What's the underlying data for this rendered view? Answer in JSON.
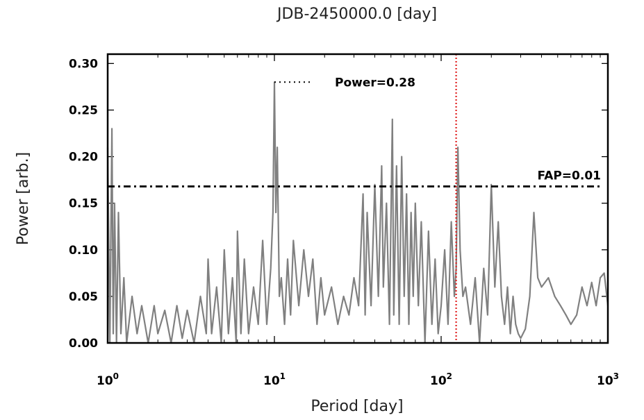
{
  "chart_data": {
    "type": "line",
    "title": "",
    "top_axis_label": "JDB-2450000.0 [day]",
    "xlabel": "Period [day]",
    "ylabel": "Power [arb.]",
    "xscale": "log",
    "xlim": [
      1,
      1000
    ],
    "ylim": [
      0,
      0.31
    ],
    "grid": false,
    "x_ticks": [
      {
        "value": 1,
        "base": "10",
        "exp": "0"
      },
      {
        "value": 10,
        "base": "10",
        "exp": "1"
      },
      {
        "value": 100,
        "base": "10",
        "exp": "2"
      },
      {
        "value": 1000,
        "base": "10",
        "exp": "3"
      }
    ],
    "y_ticks": [
      {
        "value": 0.0,
        "label": "0.00"
      },
      {
        "value": 0.05,
        "label": "0.05"
      },
      {
        "value": 0.1,
        "label": "0.10"
      },
      {
        "value": 0.15,
        "label": "0.15"
      },
      {
        "value": 0.2,
        "label": "0.20"
      },
      {
        "value": 0.25,
        "label": "0.25"
      },
      {
        "value": 0.3,
        "label": "0.30"
      }
    ],
    "series": [
      {
        "color": "#808080",
        "x": [
          1.0,
          1.03,
          1.06,
          1.08,
          1.1,
          1.13,
          1.16,
          1.2,
          1.25,
          1.3,
          1.4,
          1.5,
          1.6,
          1.75,
          1.9,
          2.0,
          2.2,
          2.4,
          2.6,
          2.8,
          3.0,
          3.3,
          3.6,
          3.9,
          4.0,
          4.2,
          4.5,
          4.8,
          5.0,
          5.3,
          5.6,
          5.9,
          6.0,
          6.3,
          6.6,
          7.0,
          7.5,
          8.0,
          8.5,
          9.0,
          9.5,
          9.8,
          10.0,
          10.2,
          10.4,
          10.7,
          11.0,
          11.5,
          12.0,
          12.5,
          13.0,
          14.0,
          15.0,
          16.0,
          17.0,
          18.0,
          19.0,
          20.0,
          22.0,
          24.0,
          26.0,
          28.0,
          30.0,
          32.0,
          34.0,
          35.0,
          36.0,
          38.0,
          40.0,
          42.0,
          44.0,
          45.0,
          47.0,
          49.0,
          51.0,
          52.0,
          54.0,
          56.0,
          58.0,
          60.0,
          62.0,
          64.0,
          66.0,
          68.0,
          70.0,
          73.0,
          76.0,
          80.0,
          84.0,
          88.0,
          92.0,
          96.0,
          100.0,
          105.0,
          110.0,
          115.0,
          120.0,
          123.0,
          126.0,
          130.0,
          135.0,
          140.0,
          150.0,
          160.0,
          170.0,
          180.0,
          190.0,
          200.0,
          210.0,
          220.0,
          230.0,
          240.0,
          250.0,
          260.0,
          270.0,
          280.0,
          290.0,
          300.0,
          320.0,
          340.0,
          360.0,
          380.0,
          400.0,
          440.0,
          480.0,
          520.0,
          560.0,
          600.0,
          650.0,
          700.0,
          750.0,
          800.0,
          850.0,
          900.0,
          950.0,
          1000.0
        ],
        "y": [
          0.21,
          0.0,
          0.23,
          0.01,
          0.15,
          0.0,
          0.14,
          0.01,
          0.07,
          0.0,
          0.05,
          0.01,
          0.04,
          0.0,
          0.04,
          0.01,
          0.035,
          0.0,
          0.04,
          0.005,
          0.035,
          0.0,
          0.05,
          0.01,
          0.09,
          0.01,
          0.06,
          0.0,
          0.1,
          0.01,
          0.07,
          0.0,
          0.12,
          0.01,
          0.09,
          0.01,
          0.06,
          0.02,
          0.11,
          0.02,
          0.08,
          0.14,
          0.28,
          0.14,
          0.21,
          0.05,
          0.07,
          0.02,
          0.09,
          0.03,
          0.11,
          0.04,
          0.1,
          0.05,
          0.09,
          0.02,
          0.07,
          0.03,
          0.06,
          0.02,
          0.05,
          0.03,
          0.07,
          0.04,
          0.16,
          0.03,
          0.14,
          0.04,
          0.17,
          0.05,
          0.19,
          0.06,
          0.15,
          0.02,
          0.24,
          0.03,
          0.19,
          0.02,
          0.2,
          0.05,
          0.16,
          0.02,
          0.14,
          0.05,
          0.15,
          0.04,
          0.13,
          0.0,
          0.12,
          0.02,
          0.09,
          0.01,
          0.04,
          0.1,
          0.02,
          0.13,
          0.05,
          0.08,
          0.21,
          0.1,
          0.05,
          0.06,
          0.02,
          0.07,
          0.0,
          0.08,
          0.03,
          0.17,
          0.06,
          0.13,
          0.05,
          0.02,
          0.06,
          0.01,
          0.05,
          0.02,
          0.01,
          0.005,
          0.015,
          0.05,
          0.14,
          0.07,
          0.06,
          0.07,
          0.05,
          0.04,
          0.03,
          0.02,
          0.03,
          0.06,
          0.04,
          0.065,
          0.04,
          0.07,
          0.075,
          0.04
        ]
      }
    ],
    "annotations": {
      "power_label": "Power=0.28",
      "power_value": 0.28,
      "power_line_x_start": 10,
      "power_line_x_end": 17,
      "fap_label": "FAP=0.01",
      "fap_value": 0.168,
      "marker_period": 123
    }
  }
}
